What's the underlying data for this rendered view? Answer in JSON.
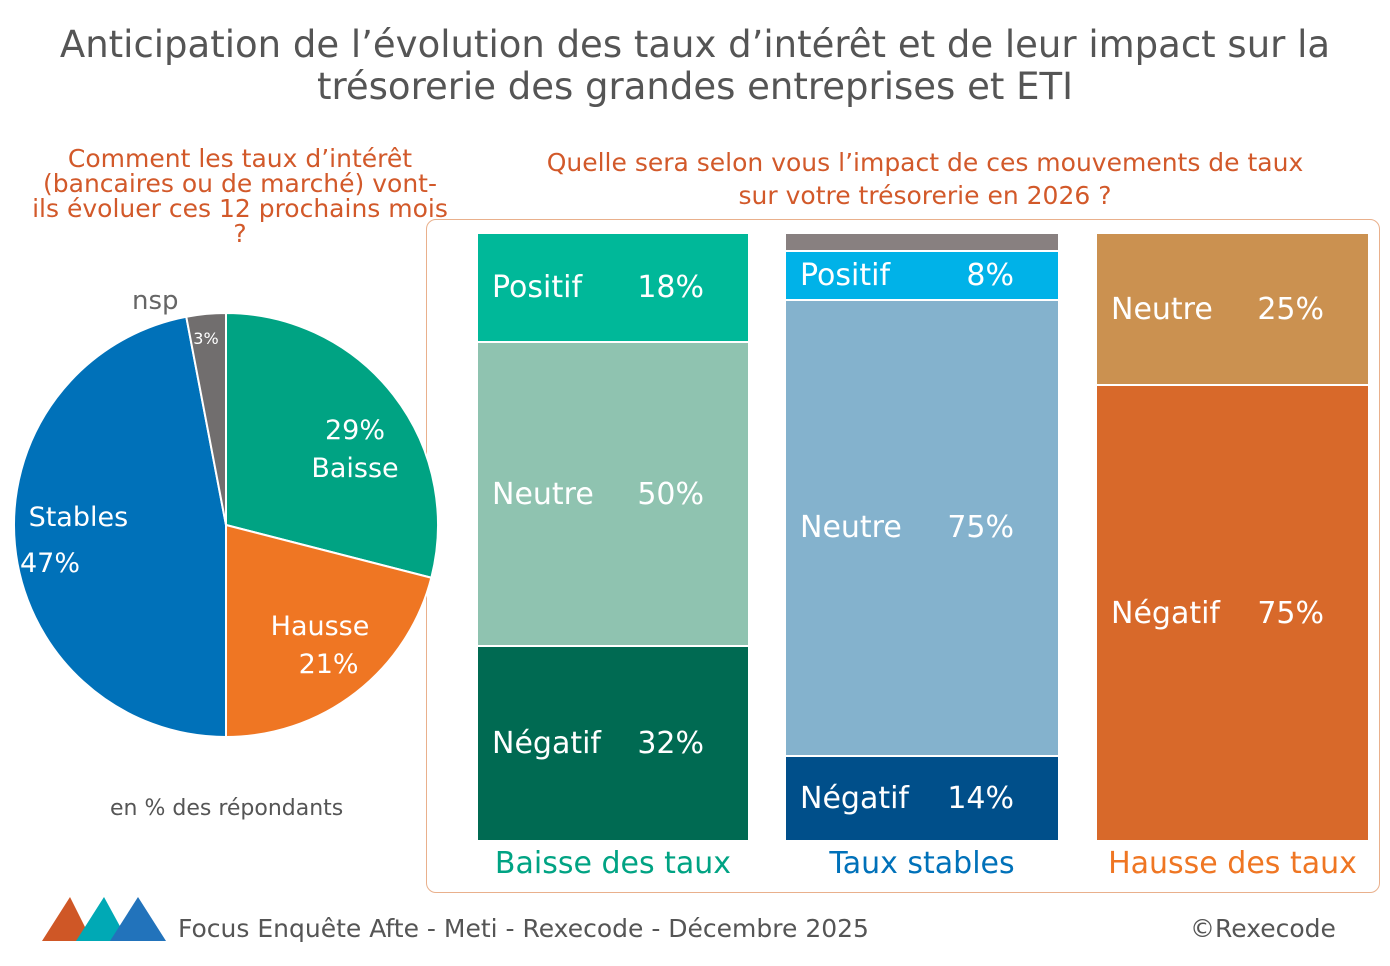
{
  "title": "Anticipation de l’évolution des taux d’intérêt et de leur impact sur la trésorerie des grandes entreprises et ETI",
  "chart_data": [
    {
      "type": "pie",
      "title": "Comment les taux d’intérêt (bancaires ou de marché) vont-ils évoluer ces 12 prochains mois ?",
      "slices": [
        {
          "label": "Baisse",
          "value": 29,
          "color": "#00a383"
        },
        {
          "label": "Hausse",
          "value": 21,
          "color": "#ef7623"
        },
        {
          "label": "Stables",
          "value": 47,
          "color": "#0071b9"
        },
        {
          "label": "nsp",
          "value": 3,
          "color": "#716e6e"
        }
      ],
      "note": "en % des répondants"
    },
    {
      "type": "bar",
      "stacked": true,
      "title": "Quelle sera selon vous l’impact de ces mouvements de taux sur votre trésorerie en 2026 ?",
      "categories": [
        "Baisse des taux",
        "Taux stables",
        "Hausse des taux"
      ],
      "category_colors": [
        "#00a383",
        "#0071b9",
        "#ef7623"
      ],
      "columns": [
        [
          {
            "label": "Positif",
            "value": 18,
            "color": "#00b899"
          },
          {
            "label": "Neutre",
            "value": 50,
            "color": "#8fc3b0"
          },
          {
            "label": "Négatif",
            "value": 32,
            "color": "#006a52"
          }
        ],
        [
          {
            "label": "",
            "value": 3,
            "color": "#888080"
          },
          {
            "label": "Positif",
            "value": 8,
            "color": "#00b2e8"
          },
          {
            "label": "Neutre",
            "value": 75,
            "color": "#84b2cd"
          },
          {
            "label": "Négatif",
            "value": 14,
            "color": "#004f8a"
          }
        ],
        [
          {
            "label": "Neutre",
            "value": 25,
            "color": "#cb9150"
          },
          {
            "label": "Négatif",
            "value": 75,
            "color": "#d8692a"
          }
        ]
      ]
    }
  ],
  "footer": {
    "source": "Focus Enquête Afte - Meti - Rexecode  - Décembre 2025",
    "copyright": "©Rexecode"
  }
}
